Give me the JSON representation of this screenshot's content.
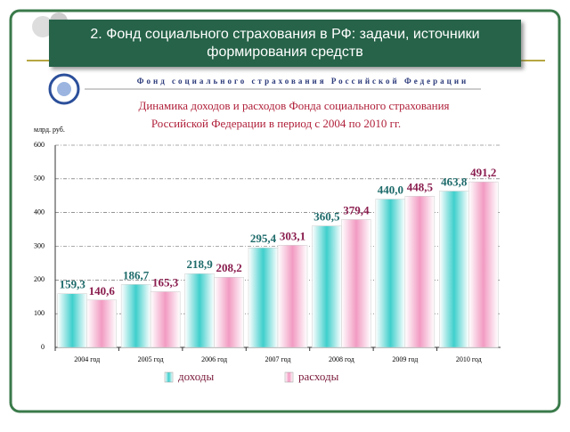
{
  "header": {
    "title": [
      "2. Фонд социального страхования в РФ: задачи, источники",
      "формирования средств"
    ]
  },
  "org_name": "Фонд социального страхования Российской Федерации",
  "chart_data": {
    "type": "bar",
    "title": [
      "Динамика доходов и расходов Фонда социального страхования",
      "Российской Федерации  в период с 2004 по 2010 гг."
    ],
    "y_label": "млрд. руб.",
    "categories": [
      "2004 год",
      "2005 год",
      "2006 год",
      "2007 год",
      "2008 год",
      "2009 год",
      "2010 год"
    ],
    "series": [
      {
        "name": "доходы",
        "color": "#3fcfcc",
        "values": [
          159.3,
          186.7,
          218.9,
          295.4,
          360.5,
          440.0,
          463.8
        ],
        "value_labels": [
          "159,3",
          "186,7",
          "218,9",
          "295,4",
          "360,5",
          "440,0",
          "463,8"
        ]
      },
      {
        "name": "расходы",
        "color": "#f29bc2",
        "values": [
          140.6,
          165.3,
          208.2,
          303.1,
          379.4,
          448.5,
          491.2
        ],
        "value_labels": [
          "140,6",
          "165,3",
          "208,2",
          "303,1",
          "379,4",
          "448,5",
          "491,2"
        ]
      }
    ],
    "ylim": [
      0,
      600
    ],
    "yticks": [
      0,
      100,
      200,
      300,
      400,
      500,
      600
    ],
    "grid": true
  }
}
